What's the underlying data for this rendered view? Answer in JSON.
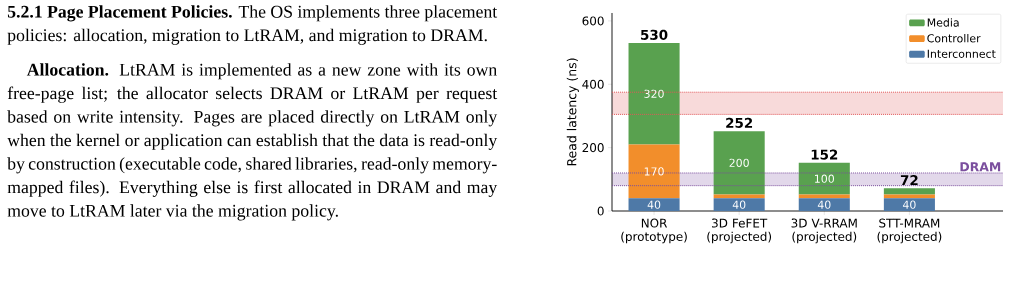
{
  "chart_data": [
    {
      "type": "other",
      "annotations": [
        "**5.2.1 Page Placement Policies.** The OS implements three placement policies: allocation, migration to LtRAM, and migration to DRAM.",
        "**Allocation.** LtRAM is implemented as a new zone with its own free-page list; the allocator selects DRAM or LtRAM per request based on write intensity. Pages are placed directly on LtRAM only when the kernel or application can establish that the data is read-only by construction (executable code, shared libraries, read-only memory-mapped files). Everything else is first allocated in DRAM and may move to LtRAM later via the migration policy."
      ]
    },
    {
      "type": "bar",
      "stacked": true,
      "ylabel": "Read latency (ns)",
      "categories": [
        "NOR (prototype)",
        "3D FeFET (projected)",
        "3D V-RRAM (projected)",
        "STT-MRAM (projected)"
      ],
      "series": [
        {
          "name": "Interconnect",
          "color": "#4e79a7",
          "values": [
            40,
            40,
            40,
            40
          ],
          "value_labels": [
            "40",
            "40",
            "40",
            "40"
          ]
        },
        {
          "name": "Controller",
          "color": "#f28e2b",
          "values": [
            170,
            12,
            12,
            12
          ],
          "value_labels": [
            "170",
            null,
            null,
            null
          ]
        },
        {
          "name": "Media",
          "color": "#59a14f",
          "values": [
            320,
            200,
            100,
            20
          ],
          "value_labels": [
            "320",
            "200",
            "100",
            null
          ]
        }
      ],
      "totals": [
        "530",
        "252",
        "152",
        "72"
      ],
      "ylim": [
        0,
        625
      ],
      "yticks": [
        0,
        200,
        400,
        600
      ],
      "bands": [
        {
          "axis": "y",
          "from": 305,
          "to": 375,
          "color": "#f8dada"
        },
        {
          "axis": "y",
          "from": 80,
          "to": 120,
          "color": "#e2d8ea"
        }
      ],
      "ref_lines": [
        {
          "axis": "y",
          "value": 305,
          "color": "#e15759",
          "line_style": "dotted"
        },
        {
          "axis": "y",
          "value": 375,
          "color": "#e15759",
          "line_style": "dotted"
        },
        {
          "axis": "y",
          "value": 80,
          "color": "#7b4f9e",
          "line_style": "dotted"
        },
        {
          "axis": "y",
          "value": 120,
          "color": "#7b4f9e",
          "line_style": "dotted",
          "label": "DRAM"
        }
      ],
      "legend": "top right"
    }
  ]
}
